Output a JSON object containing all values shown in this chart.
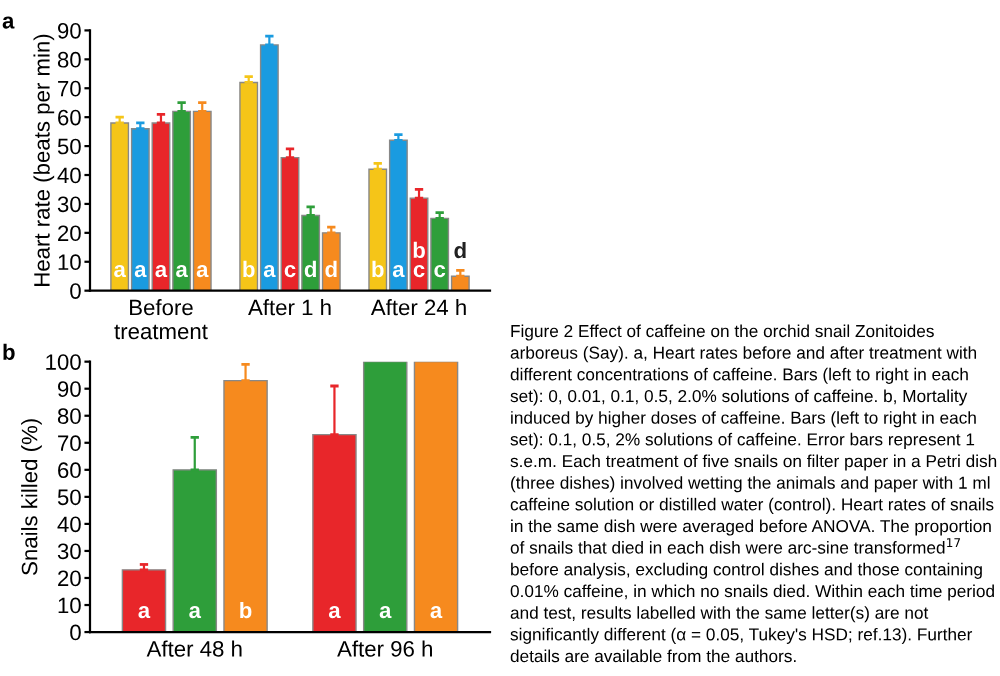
{
  "chart_data": [
    {
      "type": "bar",
      "ylabel": "Heart rate (beats per min)",
      "categories": [
        "Before\ntreatment",
        "After 1 h",
        "After 24 h"
      ],
      "ylim": [
        0,
        90
      ],
      "yticks": [
        0,
        10,
        20,
        30,
        40,
        50,
        60,
        70,
        80,
        90
      ],
      "grid": false,
      "legend": false,
      "annotations": [
        "a",
        "Figure 2 Effect of caffeine on the orchid snail Zonitoides arboreus (Say). a, Heart rates before and after treatment with different concentrations of caffeine. Bars (left to right in each set): 0, 0.01, 0.1, 0.5, 2.0% solutions of caffeine. b, Mortality induced by higher doses of caffeine. Bars (left to right in each set): 0.1, 0.5, 2% solutions of caffeine. Error bars represent 1 s.e.m. Each treatment of five snails on filter paper in a Petri dish (three dishes) involved wetting the animals and paper with 1 ml caffeine solution or distilled water (control). Heart rates of snails in the same dish were averaged before ANOVA. The proportion of snails that died in each dish were arc-sine transformed$^{17}$ before analysis, excluding control dishes and those containing 0.01% caffeine, in which no snails died. Within each time period and test, results labelled with the same letter(s) are not significantly different (α = 0.05, Tukey's HSD; ref.13). Further details are available from the authors."
      ],
      "series": [
        {
          "color": "#f5c518",
          "values": [
            58,
            72,
            42
          ],
          "errors": [
            2,
            2,
            2
          ],
          "value_labels": [
            "a",
            "b",
            "b"
          ]
        },
        {
          "color": "#1a9be0",
          "values": [
            56,
            85,
            52
          ],
          "errors": [
            2,
            3,
            2
          ],
          "value_labels": [
            "a",
            "a",
            "a"
          ]
        },
        {
          "color": "#e8262a",
          "values": [
            58,
            46,
            32
          ],
          "errors": [
            3,
            3,
            3
          ],
          "value_labels": [
            "a",
            "c",
            "b\nc"
          ]
        },
        {
          "color": "#2e9e3a",
          "values": [
            62,
            26,
            25
          ],
          "errors": [
            3,
            3,
            2
          ],
          "value_labels": [
            "a",
            "d",
            "c"
          ]
        },
        {
          "color": "#f68a1e",
          "values": [
            62,
            20,
            5
          ],
          "errors": [
            3,
            2,
            2
          ],
          "value_labels": [
            "a",
            "d",
            "d"
          ]
        }
      ]
    },
    {
      "type": "bar",
      "ylabel": "Snails killed (%)",
      "categories": [
        "After 48 h",
        "After 96 h"
      ],
      "ylim": [
        0,
        100
      ],
      "yticks": [
        0,
        10,
        20,
        30,
        40,
        50,
        60,
        70,
        80,
        90,
        100
      ],
      "grid": false,
      "legend": false,
      "annotations": [
        "b"
      ],
      "series": [
        {
          "color": "#e8262a",
          "values": [
            23,
            73
          ],
          "errors": [
            2,
            18
          ],
          "value_labels": [
            "a",
            "a"
          ]
        },
        {
          "color": "#2e9e3a",
          "values": [
            60,
            100
          ],
          "errors": [
            12,
            null
          ],
          "value_labels": [
            "a",
            "a"
          ]
        },
        {
          "color": "#f68a1e",
          "values": [
            93,
            100
          ],
          "errors": [
            6,
            null
          ],
          "value_labels": [
            "b",
            "a"
          ]
        }
      ]
    }
  ]
}
